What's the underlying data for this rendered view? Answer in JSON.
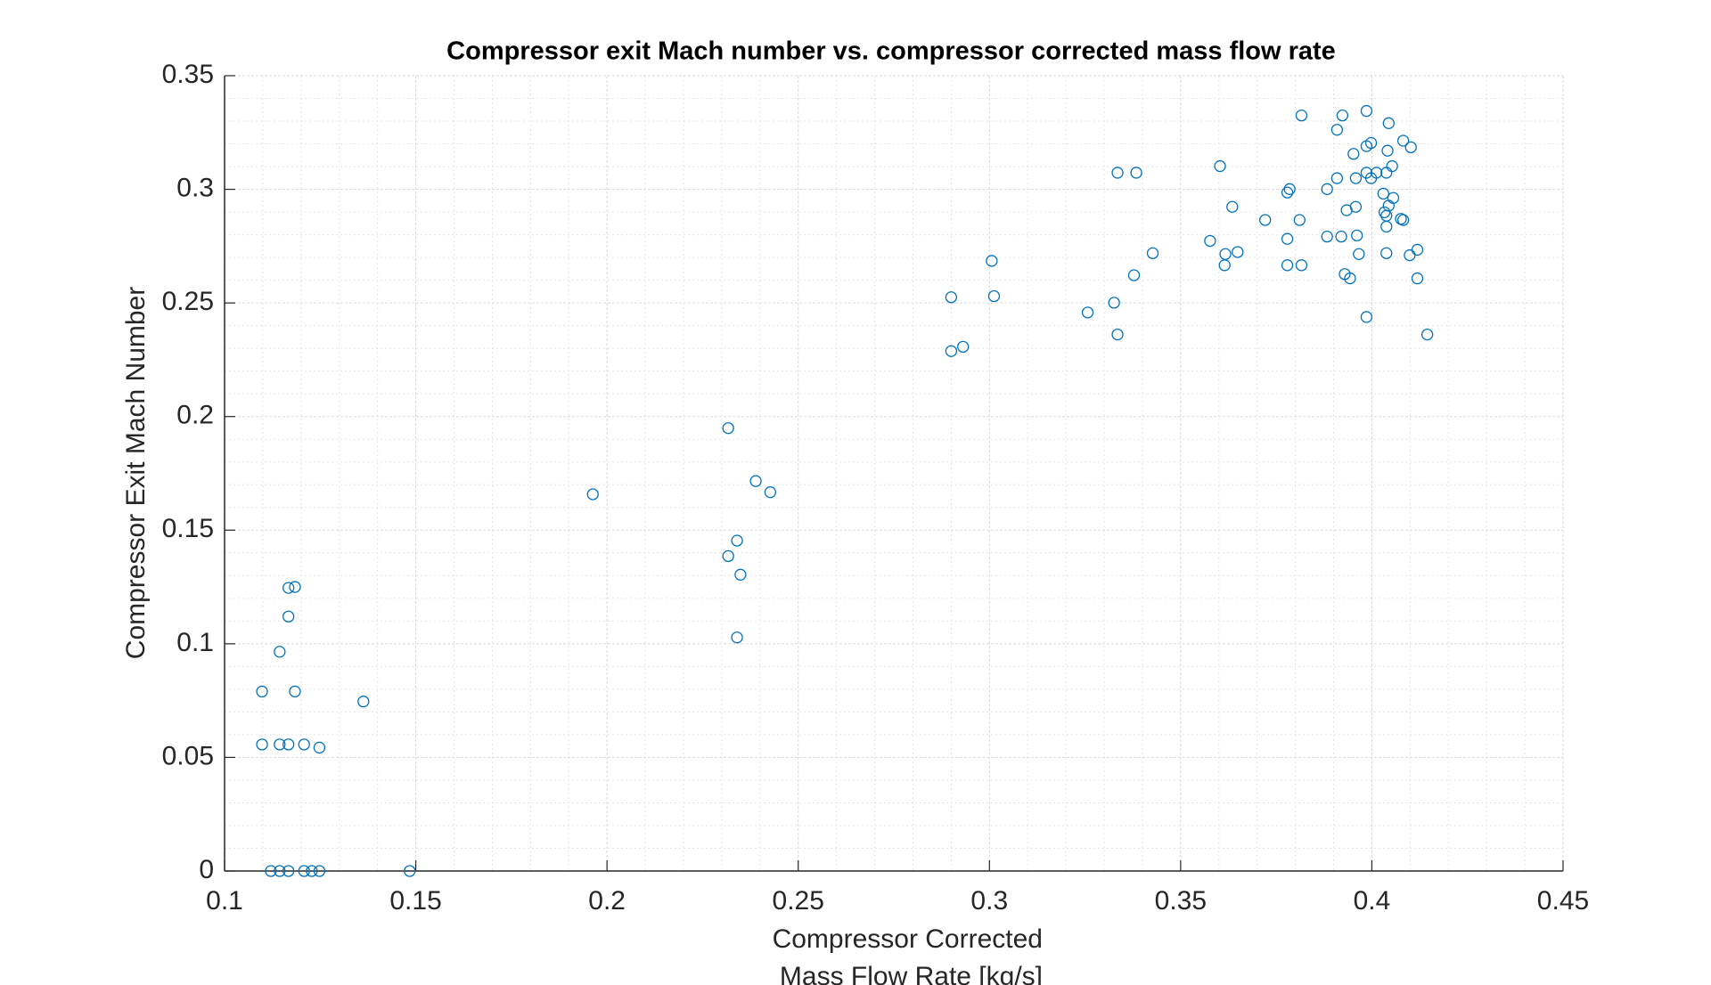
{
  "chart_data": {
    "type": "scatter",
    "title": "Compressor exit Mach number vs. compressor corrected mass flow rate",
    "xlabel": [
      "Compressor Corrected",
      "Mass Flow Rate [kg/s]"
    ],
    "ylabel": "Compressor Exit Mach Number",
    "xlim": [
      0.1,
      0.45
    ],
    "ylim": [
      0,
      0.35
    ],
    "xticks": [
      0.1,
      0.15,
      0.2,
      0.25,
      0.3,
      0.35,
      0.4,
      0.45
    ],
    "yticks": [
      0,
      0.05,
      0.1,
      0.15,
      0.2,
      0.25,
      0.3,
      0.35
    ],
    "grid": true,
    "minor_grid": true,
    "marker": "open-circle",
    "series": [
      {
        "color": "#0072bd",
        "x": [
          0.1098,
          0.1098,
          0.1144,
          0.1144,
          0.1167,
          0.1167,
          0.1167,
          0.1184,
          0.1184,
          0.1208,
          0.1248,
          0.1363,
          0.1121,
          0.1144,
          0.1167,
          0.1208,
          0.1228,
          0.1248,
          0.1484,
          0.1963,
          0.2317,
          0.2389,
          0.2427,
          0.2317,
          0.234,
          0.2349,
          0.234,
          0.29,
          0.29,
          0.2931,
          0.3006,
          0.3012,
          0.3257,
          0.3326,
          0.3335,
          0.3335,
          0.3384,
          0.3378,
          0.3427,
          0.3577,
          0.3603,
          0.3617,
          0.3615,
          0.3635,
          0.3649,
          0.3721,
          0.3779,
          0.3785,
          0.3779,
          0.3779,
          0.3816,
          0.3811,
          0.3816,
          0.3883,
          0.3883,
          0.3909,
          0.3909,
          0.392,
          0.3923,
          0.3929,
          0.3934,
          0.3943,
          0.3952,
          0.3958,
          0.3958,
          0.3961,
          0.3966,
          0.3986,
          0.3986,
          0.3986,
          0.3986,
          0.3998,
          0.3998,
          0.4012,
          0.403,
          0.4033,
          0.4038,
          0.4038,
          0.4038,
          0.4038,
          0.4041,
          0.4044,
          0.4044,
          0.4053,
          0.4056,
          0.4076,
          0.4082,
          0.4082,
          0.4102,
          0.4099,
          0.4119,
          0.4119,
          0.4145
        ],
        "values": [
          0.079,
          0.0557,
          0.0965,
          0.0557,
          0.1246,
          0.112,
          0.0557,
          0.125,
          0.079,
          0.0557,
          0.0543,
          0.0746,
          0,
          0,
          0,
          0,
          0,
          0,
          0,
          0.1658,
          0.1949,
          0.1716,
          0.1667,
          0.1386,
          0.1454,
          0.1304,
          0.1028,
          0.2525,
          0.2288,
          0.2307,
          0.2685,
          0.253,
          0.2458,
          0.2501,
          0.2361,
          0.3073,
          0.3073,
          0.2622,
          0.2719,
          0.2773,
          0.3102,
          0.2715,
          0.2666,
          0.2923,
          0.2724,
          0.2865,
          0.2986,
          0.3001,
          0.2782,
          0.2666,
          0.3325,
          0.2865,
          0.2666,
          0.3001,
          0.2792,
          0.3262,
          0.3049,
          0.2792,
          0.3325,
          0.2627,
          0.2908,
          0.2608,
          0.3156,
          0.3049,
          0.2923,
          0.2797,
          0.2715,
          0.319,
          0.3345,
          0.3073,
          0.2438,
          0.3204,
          0.3049,
          0.3073,
          0.2981,
          0.2899,
          0.2884,
          0.2836,
          0.2719,
          0.3073,
          0.317,
          0.3291,
          0.2928,
          0.3102,
          0.2962,
          0.287,
          0.2865,
          0.3214,
          0.3185,
          0.271,
          0.2734,
          0.2608,
          0.2361
        ]
      }
    ]
  }
}
